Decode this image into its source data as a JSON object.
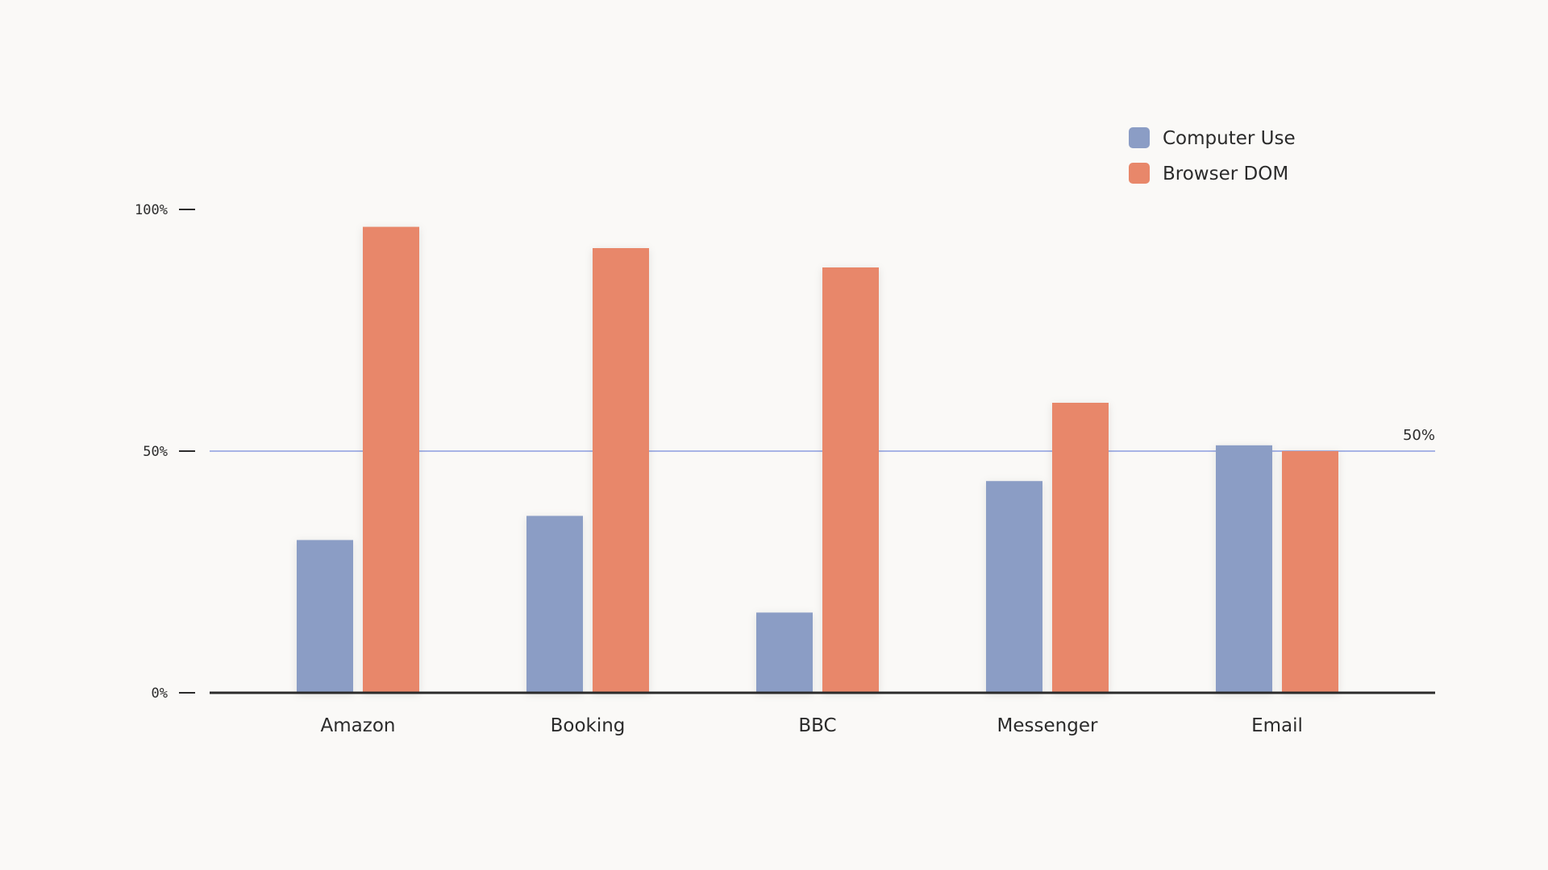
{
  "chart_data": {
    "type": "bar",
    "title": "",
    "xlabel": "",
    "ylabel": "",
    "categories": [
      "Amazon",
      "Booking",
      "BBC",
      "Messenger",
      "Email"
    ],
    "series": [
      {
        "name": "Computer Use",
        "values": [
          31.6,
          36.6,
          16.6,
          43.8,
          51.2
        ],
        "color": "#8b9dc5"
      },
      {
        "name": "Browser DOM",
        "values": [
          96.4,
          92.0,
          88.0,
          60.0,
          50.0
        ],
        "color": "#e8876a"
      }
    ],
    "ylim": [
      0,
      100
    ],
    "yticks": [
      {
        "value": 0,
        "label": "0%"
      },
      {
        "value": 50,
        "label": "50%"
      },
      {
        "value": 100,
        "label": "100%"
      }
    ],
    "reference_line": {
      "value": 50,
      "label": "50%",
      "color": "#8b9de0"
    },
    "legend": {
      "placement": "top-right"
    },
    "grid": false,
    "axis_color": "#2b2b2b"
  }
}
